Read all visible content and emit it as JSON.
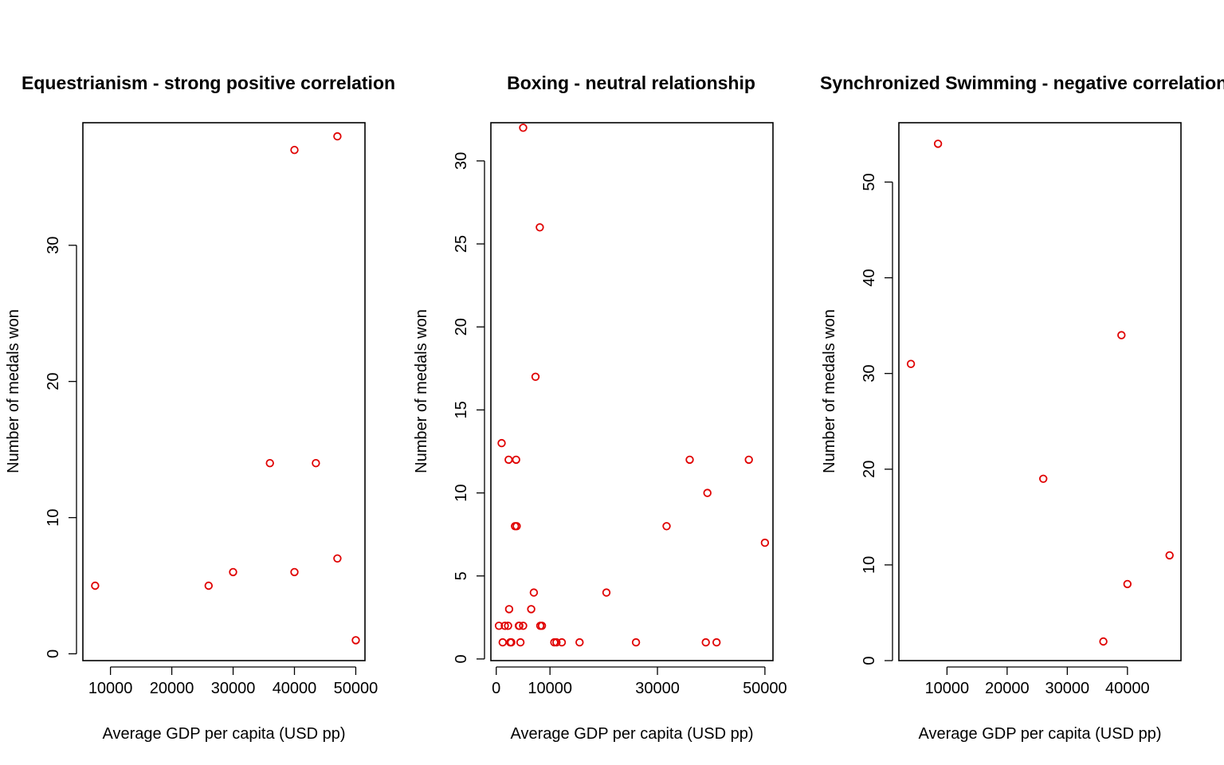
{
  "point_color": "#e00000",
  "chart_data": [
    {
      "type": "scatter",
      "title": "Equestrianism - strong positive correlation",
      "xlabel": "Average GDP per capita (USD pp)",
      "ylabel": "Number of medals won",
      "xlim": [
        5500,
        51500
      ],
      "ylim": [
        -0.5,
        39
      ],
      "xticks": [
        10000,
        20000,
        30000,
        40000,
        50000
      ],
      "yticks": [
        0,
        10,
        20,
        30
      ],
      "grid": false,
      "x": [
        7500,
        26000,
        30000,
        36000,
        40000,
        40000,
        43500,
        47000,
        47000,
        50000
      ],
      "y": [
        5,
        5,
        6,
        14,
        37,
        6,
        14,
        38,
        7,
        1
      ]
    },
    {
      "type": "scatter",
      "title": "Boxing - neutral relationship",
      "xlabel": "Average GDP per capita (USD pp)",
      "ylabel": "Number of medals won",
      "xlim": [
        -1000,
        51500
      ],
      "ylim": [
        -0.1,
        32.3
      ],
      "xticks": [
        0,
        10000,
        30000,
        50000
      ],
      "yticks": [
        0,
        5,
        10,
        15,
        20,
        25,
        30
      ],
      "grid": false,
      "x": [
        500,
        1000,
        1200,
        1600,
        2200,
        2300,
        2400,
        2600,
        2800,
        3500,
        3700,
        3800,
        4200,
        4300,
        4500,
        5000,
        5000,
        6500,
        7000,
        7300,
        8100,
        8200,
        8500,
        10800,
        11200,
        12200,
        15500,
        20500,
        26000,
        31700,
        36000,
        39000,
        39300,
        41000,
        47000,
        50000
      ],
      "y": [
        2,
        13,
        1,
        2,
        2,
        12,
        3,
        1,
        1,
        8,
        12,
        8,
        2,
        2,
        1,
        32,
        2,
        3,
        4,
        17,
        26,
        2,
        2,
        1,
        1,
        1,
        1,
        4,
        1,
        8,
        12,
        1,
        10,
        1,
        12,
        7
      ]
    },
    {
      "type": "scatter",
      "title": "Synchronized Swimming - negative correlation",
      "xlabel": "Average GDP per capita (USD pp)",
      "ylabel": "Number of medals won",
      "xlim": [
        2000,
        48900
      ],
      "ylim": [
        0,
        56.2
      ],
      "xticks": [
        10000,
        20000,
        30000,
        40000
      ],
      "yticks": [
        0,
        10,
        20,
        30,
        40,
        50
      ],
      "grid": false,
      "x": [
        4000,
        8500,
        26000,
        36000,
        39000,
        40000,
        47000
      ],
      "y": [
        31,
        54,
        19,
        2,
        34,
        8,
        11
      ]
    }
  ]
}
